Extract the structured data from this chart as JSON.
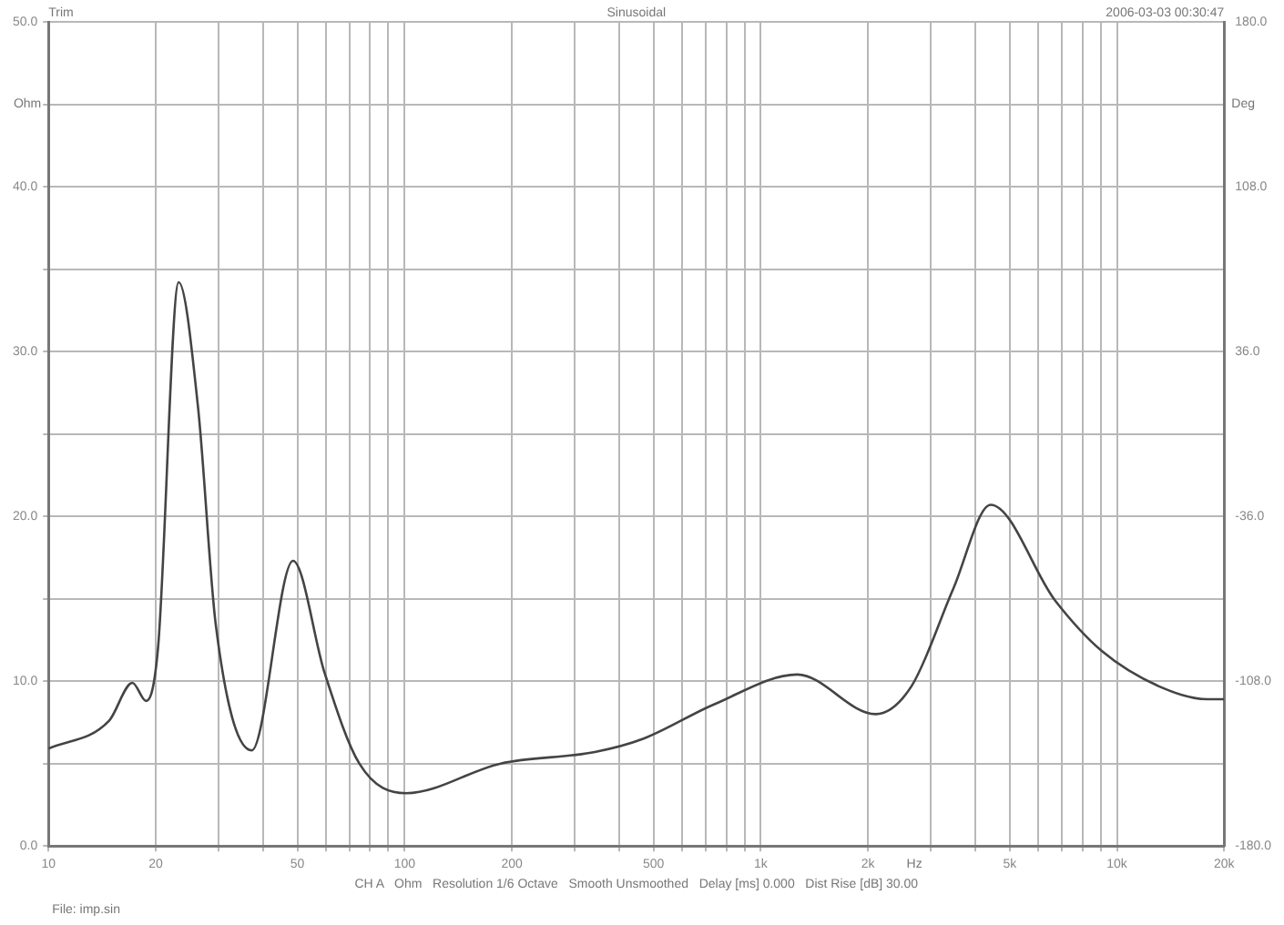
{
  "chart_data": {
    "type": "line",
    "title": "Sinusoidal",
    "xlabel": "Hz",
    "ylabel": "Ohm",
    "y2label": "Deg",
    "annotations": [
      "Trim",
      "2006-03-03 00:30:47",
      "CH A   Ohm   Resolution 1/6 Octave   Smooth Unsmoothed   Delay [ms] 0.000   Dist Rise [dB] 30.00",
      "File: imp.sin"
    ],
    "log": "x",
    "grid": true,
    "legend": false,
    "marker": "none",
    "line_style": "solid",
    "xlim": [
      10,
      20000
    ],
    "xticks": [
      {
        "value": 10,
        "label": "10"
      },
      {
        "value": 20,
        "label": "20"
      },
      {
        "value": 30,
        "label": null
      },
      {
        "value": 40,
        "label": null
      },
      {
        "value": 50,
        "label": "50"
      },
      {
        "value": 60,
        "label": null
      },
      {
        "value": 70,
        "label": null
      },
      {
        "value": 80,
        "label": null
      },
      {
        "value": 90,
        "label": null
      },
      {
        "value": 100,
        "label": "100"
      },
      {
        "value": 200,
        "label": "200"
      },
      {
        "value": 300,
        "label": null
      },
      {
        "value": 400,
        "label": null
      },
      {
        "value": 500,
        "label": "500"
      },
      {
        "value": 600,
        "label": null
      },
      {
        "value": 700,
        "label": null
      },
      {
        "value": 800,
        "label": null
      },
      {
        "value": 900,
        "label": null
      },
      {
        "value": 1000,
        "label": "1k"
      },
      {
        "value": 2000,
        "label": "2k"
      },
      {
        "value": 3000,
        "label": null
      },
      {
        "value": 4000,
        "label": null
      },
      {
        "value": 5000,
        "label": "5k"
      },
      {
        "value": 6000,
        "label": null
      },
      {
        "value": 7000,
        "label": null
      },
      {
        "value": 8000,
        "label": null
      },
      {
        "value": 9000,
        "label": null
      },
      {
        "value": 10000,
        "label": "10k"
      },
      {
        "value": 20000,
        "label": "20k"
      }
    ],
    "ylim": [
      0,
      50
    ],
    "yticks": [
      {
        "value": 0,
        "label": "0.0"
      },
      {
        "value": 5,
        "label": null
      },
      {
        "value": 10,
        "label": "10.0"
      },
      {
        "value": 15,
        "label": null
      },
      {
        "value": 20,
        "label": "20.0"
      },
      {
        "value": 25,
        "label": null
      },
      {
        "value": 30,
        "label": "30.0"
      },
      {
        "value": 35,
        "label": null
      },
      {
        "value": 40,
        "label": "40.0"
      },
      {
        "value": 45,
        "label": null
      },
      {
        "value": 50,
        "label": "50.0"
      }
    ],
    "y2lim": [
      -180,
      180
    ],
    "y2ticks": [
      {
        "value": -180,
        "label": "-180.0"
      },
      {
        "value": -108,
        "label": "-108.0"
      },
      {
        "value": -36,
        "label": "-36.0"
      },
      {
        "value": 36,
        "label": "36.0"
      },
      {
        "value": 108,
        "label": "108.0"
      },
      {
        "value": 144,
        "label": null
      },
      {
        "value": 180,
        "label": "180.0"
      }
    ],
    "series": [
      {
        "color": "#444444",
        "x": [
          10,
          14.8,
          17.2,
          18.8,
          20.3,
          23.2,
          26.3,
          29.5,
          37.2,
          48.6,
          59.6,
          74.6,
          101,
          186,
          342,
          467,
          741,
          1267,
          2100,
          2650,
          3470,
          4420,
          6700,
          9100,
          13400,
          18000,
          20000
        ],
        "values": [
          5.9,
          7.6,
          9.9,
          8.8,
          12,
          34.2,
          26.6,
          13.4,
          5.8,
          17.3,
          10.5,
          5.0,
          3.2,
          5.0,
          5.7,
          6.5,
          8.6,
          10.4,
          8.0,
          9.7,
          15.6,
          20.7,
          14.9,
          11.8,
          9.6,
          8.9,
          8.9
        ]
      }
    ]
  }
}
